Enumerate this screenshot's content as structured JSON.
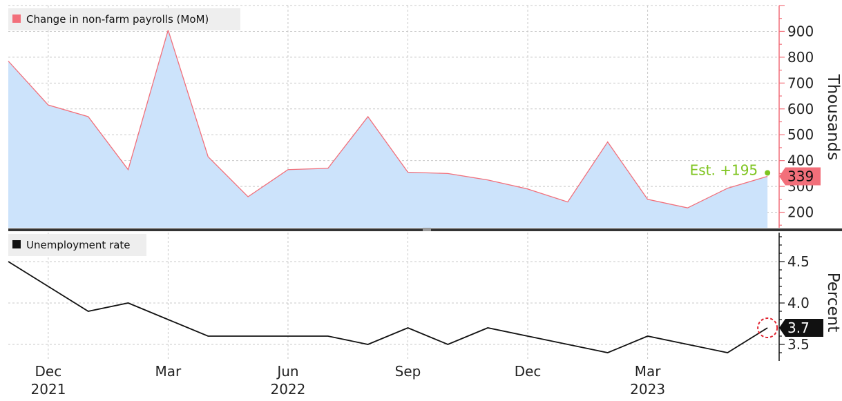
{
  "colors": {
    "payrolls_line": "#f26f7a",
    "payrolls_fill": "#cce3fb",
    "unemployment_line": "#111111",
    "estimate": "#7ec41f",
    "legend_bg": "#eeeeee",
    "grid": "#c8c8c8",
    "divider": "#333333"
  },
  "chart_data": [
    {
      "type": "area",
      "legend": "Change in non-farm payrolls (MoM)",
      "ylabel": "Thousands",
      "ylim": [
        140,
        1000
      ],
      "yticks": [
        200,
        300,
        400,
        500,
        600,
        700,
        800,
        900
      ],
      "grid": true,
      "legend_placement": "top-left",
      "series": [
        {
          "name": "Change in non-farm payrolls (MoM)",
          "x": [
            "2021-10",
            "2021-11",
            "2021-12",
            "2022-01",
            "2022-02",
            "2022-03",
            "2022-04",
            "2022-05",
            "2022-06",
            "2022-07",
            "2022-08",
            "2022-09",
            "2022-10",
            "2022-11",
            "2022-12",
            "2023-01",
            "2023-02",
            "2023-03",
            "2023-04",
            "2023-05"
          ],
          "values": [
            785,
            615,
            570,
            365,
            905,
            415,
            260,
            365,
            370,
            570,
            355,
            350,
            325,
            290,
            240,
            472,
            250,
            217,
            293,
            339
          ]
        }
      ],
      "last_value_label": "339",
      "annotation": "Est. +195"
    },
    {
      "type": "line",
      "legend": "Unemployment rate",
      "ylabel": "Percent",
      "ylim": [
        3.3,
        4.85
      ],
      "yticks": [
        3.5,
        4.0,
        4.5
      ],
      "ytick_labels": [
        "3.5",
        "4.0",
        "4.5"
      ],
      "grid": true,
      "legend_placement": "top-left",
      "series": [
        {
          "name": "Unemployment rate",
          "x": [
            "2021-10",
            "2021-11",
            "2021-12",
            "2022-01",
            "2022-02",
            "2022-03",
            "2022-04",
            "2022-05",
            "2022-06",
            "2022-07",
            "2022-08",
            "2022-09",
            "2022-10",
            "2022-11",
            "2022-12",
            "2023-01",
            "2023-02",
            "2023-03",
            "2023-04",
            "2023-05"
          ],
          "values": [
            4.5,
            4.2,
            3.9,
            4.0,
            3.8,
            3.6,
            3.6,
            3.6,
            3.6,
            3.5,
            3.7,
            3.5,
            3.7,
            3.6,
            3.5,
            3.4,
            3.6,
            3.5,
            3.4,
            3.7
          ]
        }
      ],
      "last_value_label": "3.7"
    }
  ],
  "x_axis": {
    "month_ticks": [
      {
        "x": "2021-11",
        "label": "Dec"
      },
      {
        "x": "2022-02",
        "label": "Mar"
      },
      {
        "x": "2022-05",
        "label": "Jun"
      },
      {
        "x": "2022-08",
        "label": "Sep"
      },
      {
        "x": "2022-11",
        "label": "Dec"
      },
      {
        "x": "2023-02",
        "label": "Mar"
      }
    ],
    "year_labels": [
      {
        "x": "2021-10",
        "label": "2021"
      },
      {
        "x": "2022-05",
        "label": "2022"
      },
      {
        "x": "2023-02",
        "label": "2023"
      }
    ]
  }
}
